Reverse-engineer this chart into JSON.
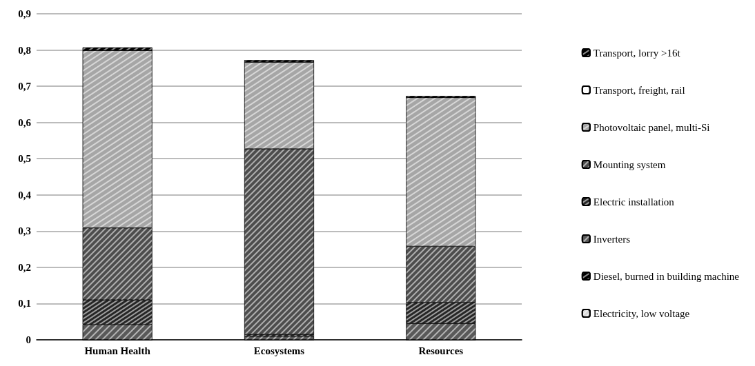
{
  "chart_data": {
    "type": "bar",
    "stacked": true,
    "categories": [
      "Human Health",
      "Ecosystems",
      "Resources"
    ],
    "series": [
      {
        "name": "Electricity, low voltage",
        "color": "#d9d9d9",
        "values": [
          0,
          0,
          0
        ]
      },
      {
        "name": "Diesel, burned in building machine",
        "color": "#000000",
        "values": [
          0,
          0,
          0
        ]
      },
      {
        "name": "Inverters",
        "color": "#595959",
        "values": [
          0.042,
          0.01,
          0.045
        ]
      },
      {
        "name": "Electric installation",
        "color": "#262626",
        "values": [
          0.068,
          0.005,
          0.058
        ]
      },
      {
        "name": "Mounting system",
        "color": "#4d4d4d",
        "values": [
          0.199,
          0.512,
          0.155
        ]
      },
      {
        "name": "Photovoltaic panel, multi-Si",
        "color": "#a6a6a6",
        "values": [
          0.49,
          0.24,
          0.411
        ]
      },
      {
        "name": "Transport, freight, rail",
        "color": "#ffffff",
        "values": [
          0,
          0,
          0
        ]
      },
      {
        "name": "Transport, lorry >16t",
        "color": "#000000",
        "values": [
          0.008,
          0.005,
          0.004
        ]
      }
    ],
    "ylim": [
      0,
      0.9
    ],
    "yticks": [
      0,
      {
        "value": 0.1,
        "label": "0,1"
      },
      {
        "value": 0.2,
        "label": "0,2"
      },
      {
        "value": 0.3,
        "label": "0,3"
      },
      {
        "value": 0.4,
        "label": "0,4"
      },
      {
        "value": 0.5,
        "label": "0,5"
      },
      {
        "value": 0.6,
        "label": "0,6"
      },
      {
        "value": 0.7,
        "label": "0,7"
      },
      {
        "value": 0.8,
        "label": "0,8"
      },
      {
        "value": 0.9,
        "label": "0,9"
      }
    ],
    "grid": "y",
    "legend": "right"
  }
}
